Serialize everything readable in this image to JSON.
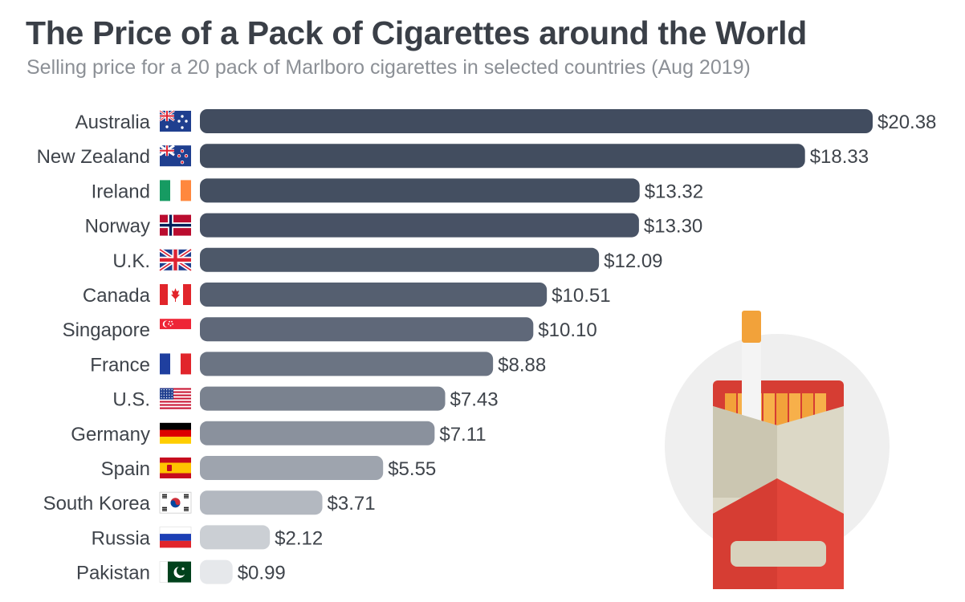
{
  "title": "The Price of a Pack of Cigarettes around the World",
  "subtitle": "Selling price for a 20 pack of Marlboro cigarettes in selected countries (Aug 2019)",
  "colors": {
    "bar_dark": "#414c5f",
    "bar_light": "#e6e8eb",
    "text": "#3f444b",
    "illustration_red": "#d63d33",
    "illustration_orange": "#f2a23a",
    "illustration_beige": "#dcd8c6",
    "illustration_circle": "#efefef"
  },
  "chart_data": {
    "type": "bar",
    "orientation": "horizontal",
    "categories": [
      "Australia",
      "New Zealand",
      "Ireland",
      "Norway",
      "U.K.",
      "Canada",
      "Singapore",
      "France",
      "U.S.",
      "Germany",
      "Spain",
      "South Korea",
      "Russia",
      "Pakistan"
    ],
    "values": [
      20.38,
      18.33,
      13.32,
      13.3,
      12.09,
      10.51,
      10.1,
      8.88,
      7.43,
      7.11,
      5.55,
      3.71,
      2.12,
      0.99
    ],
    "value_labels": [
      "$20.38",
      "$18.33",
      "$13.32",
      "$13.30",
      "$12.09",
      "$10.51",
      "$10.10",
      "$8.88",
      "$7.43",
      "$7.11",
      "$5.55",
      "$3.71",
      "$2.12",
      "$0.99"
    ],
    "flags": [
      "flag-australia-icon",
      "flag-new-zealand-icon",
      "flag-ireland-icon",
      "flag-norway-icon",
      "flag-uk-icon",
      "flag-canada-icon",
      "flag-singapore-icon",
      "flag-france-icon",
      "flag-us-icon",
      "flag-germany-icon",
      "flag-spain-icon",
      "flag-south-korea-icon",
      "flag-russia-icon",
      "flag-pakistan-icon"
    ],
    "xlim": [
      0,
      20.38
    ],
    "grid": false,
    "legend": "none"
  },
  "illustration": {
    "icon": "cigarette-pack-icon"
  }
}
